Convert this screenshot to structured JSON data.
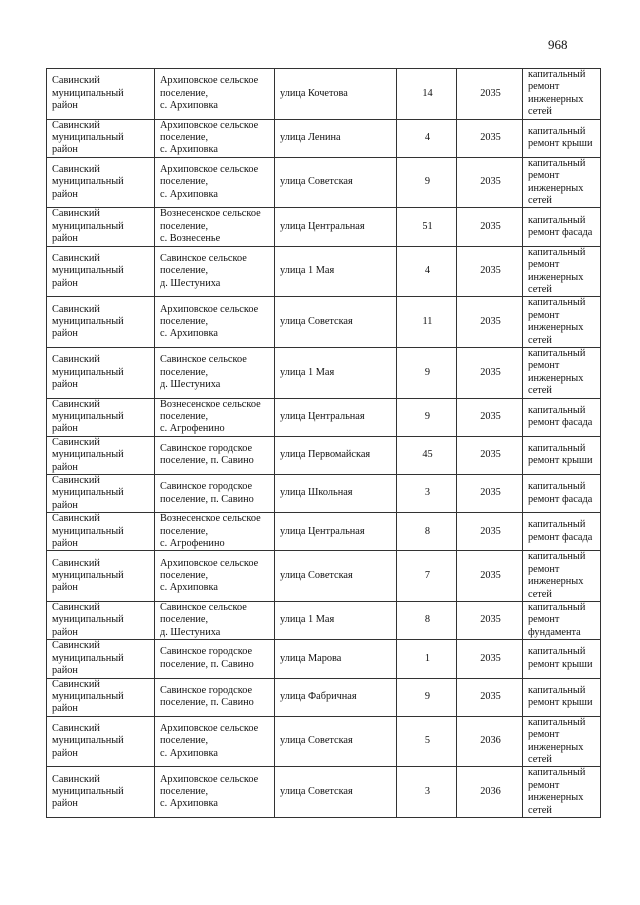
{
  "page_number": "968",
  "rows": [
    {
      "district": "Савинский\nмуниципальный\nрайон",
      "settlement": "Архиповское сельское\nпоселение,\nс. Архиповка",
      "street": "улица Кочетова",
      "house": "14",
      "year": "2035",
      "work": "капитальный\nремонт\nинженерных\nсетей"
    },
    {
      "district": "Савинский\nмуниципальный\nрайон",
      "settlement": "Архиповское сельское\nпоселение,\nс. Архиповка",
      "street": "улица Ленина",
      "house": "4",
      "year": "2035",
      "work": "капитальный\nремонт крыши"
    },
    {
      "district": "Савинский\nмуниципальный\nрайон",
      "settlement": "Архиповское сельское\nпоселение,\nс. Архиповка",
      "street": "улица Советская",
      "house": "9",
      "year": "2035",
      "work": "капитальный\nремонт\nинженерных\nсетей"
    },
    {
      "district": "Савинский\nмуниципальный\nрайон",
      "settlement": "Вознесенское сельское\nпоселение,\nс. Вознесенье",
      "street": "улица Центральная",
      "house": "51",
      "year": "2035",
      "work": "капитальный\nремонт фасада"
    },
    {
      "district": "Савинский\nмуниципальный\nрайон",
      "settlement": "Савинское сельское\nпоселение,\nд. Шестуниха",
      "street": "улица 1 Мая",
      "house": "4",
      "year": "2035",
      "work": "капитальный\nремонт\nинженерных\nсетей"
    },
    {
      "district": "Савинский\nмуниципальный\nрайон",
      "settlement": "Архиповское сельское\nпоселение,\nс. Архиповка",
      "street": "улица Советская",
      "house": "11",
      "year": "2035",
      "work": "капитальный\nремонт\nинженерных\nсетей"
    },
    {
      "district": "Савинский\nмуниципальный\nрайон",
      "settlement": "Савинское сельское\nпоселение,\nд. Шестуниха",
      "street": "улица 1 Мая",
      "house": "9",
      "year": "2035",
      "work": "капитальный\nремонт\nинженерных\nсетей"
    },
    {
      "district": "Савинский\nмуниципальный\nрайон",
      "settlement": "Вознесенское сельское\nпоселение,\nс. Агрофенино",
      "street": "улица Центральная",
      "house": "9",
      "year": "2035",
      "work": "капитальный\nремонт фасада"
    },
    {
      "district": "Савинский\nмуниципальный\nрайон",
      "settlement": "Савинское городское\nпоселение, п. Савино",
      "street": "улица Первомайская",
      "house": "45",
      "year": "2035",
      "work": "капитальный\nремонт крыши"
    },
    {
      "district": "Савинский\nмуниципальный\nрайон",
      "settlement": "Савинское городское\nпоселение, п. Савино",
      "street": "улица Школьная",
      "house": "3",
      "year": "2035",
      "work": "капитальный\nремонт фасада"
    },
    {
      "district": "Савинский\nмуниципальный\nрайон",
      "settlement": "Вознесенское сельское\nпоселение,\nс. Агрофенино",
      "street": "улица Центральная",
      "house": "8",
      "year": "2035",
      "work": "капитальный\nремонт фасада"
    },
    {
      "district": "Савинский\nмуниципальный\nрайон",
      "settlement": "Архиповское сельское\nпоселение,\nс. Архиповка",
      "street": "улица Советская",
      "house": "7",
      "year": "2035",
      "work": "капитальный\nремонт\nинженерных\nсетей"
    },
    {
      "district": "Савинский\nмуниципальный\nрайон",
      "settlement": "Савинское сельское\nпоселение,\nд. Шестуниха",
      "street": "улица 1 Мая",
      "house": "8",
      "year": "2035",
      "work": "капитальный\nремонт\nфундамента"
    },
    {
      "district": "Савинский\nмуниципальный\nрайон",
      "settlement": "Савинское городское\nпоселение, п. Савино",
      "street": "улица Марова",
      "house": "1",
      "year": "2035",
      "work": "капитальный\nремонт крыши"
    },
    {
      "district": "Савинский\nмуниципальный\nрайон",
      "settlement": "Савинское городское\nпоселение, п. Савино",
      "street": "улица Фабричная",
      "house": "9",
      "year": "2035",
      "work": "капитальный\nремонт крыши"
    },
    {
      "district": "Савинский\nмуниципальный\nрайон",
      "settlement": "Архиповское сельское\nпоселение,\nс. Архиповка",
      "street": "улица Советская",
      "house": "5",
      "year": "2036",
      "work": "капитальный\nремонт\nинженерных\nсетей"
    },
    {
      "district": "Савинский\nмуниципальный\nрайон",
      "settlement": "Архиповское сельское\nпоселение,\nс. Архиповка",
      "street": "улица Советская",
      "house": "3",
      "year": "2036",
      "work": "капитальный\nремонт\nинженерных\nсетей"
    }
  ]
}
